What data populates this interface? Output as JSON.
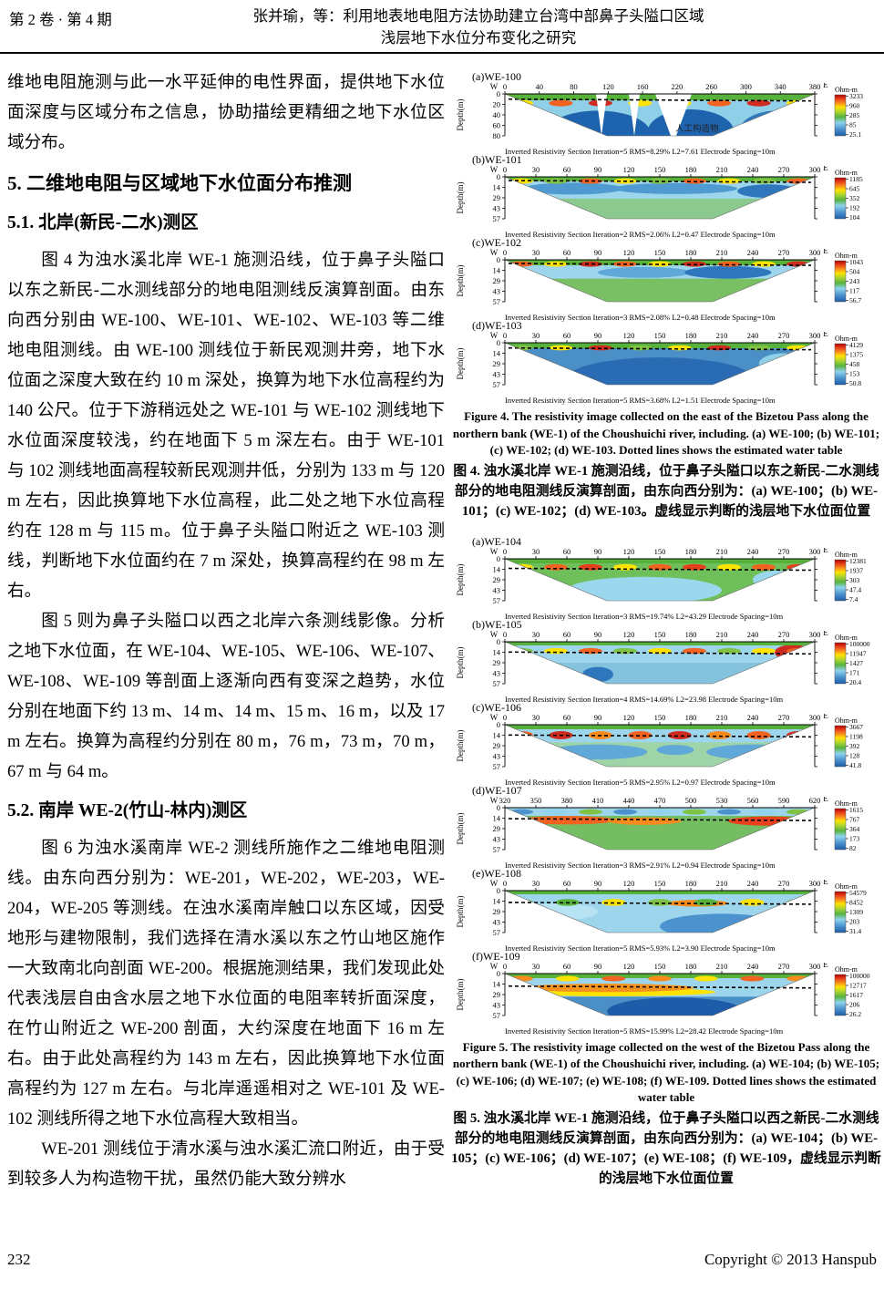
{
  "header": {
    "issue": "第 2 卷 · 第 4 期",
    "title_line1": "张并瑜，等：利用地表地电阻方法协助建立台湾中部鼻子头隘口区域",
    "title_line2": "浅层地下水位分布变化之研究"
  },
  "left_column": {
    "intro_paragraph": "维地电阻施测与此一水平延伸的电性界面，提供地下水位面深度与区域分布之信息，协助描绘更精细之地下水位区域分布。",
    "section5_heading": "5. 二维地电阻与区域地下水位面分布推测",
    "section51_heading": "5.1. 北岸(新民‐二水)测区",
    "para1": "图 4 为浊水溪北岸 WE-1 施测沿线，位于鼻子头隘口以东之新民‐二水测线部分的地电阻测线反演算剖面。由东向西分别由 WE-100、WE-101、WE-102、WE-103 等二维地电阻测线。由 WE-100 测线位于新民观测井旁，地下水位面之深度大致在约 10 m 深处，换算为地下水位高程约为 140 公尺。位于下游稍远处之 WE-101 与 WE-102 测线地下水位面深度较浅，约在地面下 5 m 深左右。由于 WE-101 与 102 测线地面高程较新民观测井低，分别为 133 m 与 120 m 左右，因此换算地下水位高程，此二处之地下水位高程约在 128 m 与 115 m。位于鼻子头隘口附近之 WE-103 测线，判断地下水位面约在 7 m 深处，换算高程约在 98 m 左右。",
    "para2": "图 5 则为鼻子头隘口以西之北岸六条测线影像。分析之地下水位面，在 WE-104、WE-105、WE-106、WE-107、WE-108、WE-109 等剖面上逐渐向西有变深之趋势，水位分别在地面下约 13 m、14 m、14 m、15 m、16 m，以及 17 m 左右。换算为高程约分别在 80 m，76 m，73 m，70 m，67 m 与 64 m。",
    "section52_heading": "5.2. 南岸 WE-2(竹山‐林内)测区",
    "para3": "图 6 为浊水溪南岸 WE-2 测线所施作之二维地电阻测线。由东向西分别为：WE-201，WE-202，WE-203，WE-204，WE-205 等测线。在浊水溪南岸触口以东区域，因受地形与建物限制，我们选择在清水溪以东之竹山地区施作一大致南北向剖面 WE-200。根据施测结果，我们发现此处代表浅层自由含水层之地下水位面的电阻率转折面深度，在竹山附近之 WE-200 剖面，大约深度在地面下 16 m 左右。由于此处高程约为 143 m 左右，因此换算地下水位面高程约为 127 m 左右。与北岸遥遥相对之 WE-101 及 WE-102 测线所得之地下水位高程大致相当。",
    "para4": "WE-201 测线位于清水溪与浊水溪汇流口附近，由于受到较多人为构造物干扰，虽然仍能大致分辨水"
  },
  "chart_data": [
    {
      "type": "heatmap",
      "title": "Figure 4",
      "caption_en": "Figure 4. The resistivity image collected on the east of the Bizetou Pass along the northern bank (WE-1) of the Choushuichi river, including. (a) WE-100; (b) WE-101; (c) WE-102; (d) WE-103. Dotted lines shows the estimated water table",
      "caption_zh": "图 4. 浊水溪北岸 WE-1 施测沿线，位于鼻子头隘口以东之新民-二水测线部分的地电阻测线反演算剖面，由东向西分别为：(a) WE-100；(b) WE-101；(c) WE-102；(d) WE-103。虚线显示判断的浅层地下水位面位置",
      "panels": [
        {
          "label": "(a)WE-100",
          "west": "W",
          "east": "E",
          "ylabel": "Depth(m)",
          "x_ticks": [
            "0",
            "40",
            "80",
            "120",
            "160",
            "220",
            "260",
            "300",
            "340",
            "380"
          ],
          "y_ticks": [
            "0",
            "20",
            "40",
            "60",
            "80"
          ],
          "y_max": 80,
          "water_table_depth_m": 10,
          "footer": "Inverted Resistivity Section  Iteration=5  RMS=8.29%  L2=7.61  Electrode Spacing=10m",
          "colorbar": {
            "title": "Ohm-m",
            "values": [
              "3233",
              "960",
              "285",
              "85",
              "25.1"
            ]
          },
          "annotation": "人工构造物",
          "pattern": "we100"
        },
        {
          "label": "(b)WE-101",
          "west": "W",
          "east": "E",
          "ylabel": "Depth(m)",
          "x_ticks": [
            "0",
            "30",
            "60",
            "90",
            "120",
            "150",
            "180",
            "210",
            "240",
            "270",
            "300"
          ],
          "y_ticks": [
            "0",
            "14",
            "29",
            "43",
            "57"
          ],
          "y_max": 57,
          "water_table_depth_m": 5,
          "footer": "Inverted Resistivity Section  Iteration=2  RMS=2.06%  L2=0.47  Electrode Spacing=10m",
          "colorbar": {
            "title": "Ohm-m",
            "values": [
              "1185",
              "645",
              "352",
              "192",
              "104"
            ]
          },
          "pattern": "bluegreen"
        },
        {
          "label": "(c)WE-102",
          "west": "W",
          "east": "E",
          "ylabel": "Depth(m)",
          "x_ticks": [
            "0",
            "30",
            "60",
            "90",
            "120",
            "150",
            "180",
            "210",
            "240",
            "270",
            "300"
          ],
          "y_ticks": [
            "0",
            "14",
            "29",
            "43",
            "57"
          ],
          "y_max": 57,
          "water_table_depth_m": 5,
          "footer": "Inverted Resistivity Section  Iteration=3  RMS=2.08%  L2=0.48  Electrode Spacing=10m",
          "colorbar": {
            "title": "Ohm-m",
            "values": [
              "1043",
              "504",
              "243",
              "117",
              "56.7"
            ]
          },
          "pattern": "green102"
        },
        {
          "label": "(d)WE-103",
          "west": "W",
          "east": "E",
          "ylabel": "Depth(m)",
          "x_ticks": [
            "0",
            "30",
            "60",
            "90",
            "120",
            "150",
            "180",
            "210",
            "240",
            "270",
            "300"
          ],
          "y_ticks": [
            "0",
            "14",
            "29",
            "43",
            "57"
          ],
          "y_max": 57,
          "water_table_depth_m": 7,
          "footer": "Inverted Resistivity Section  Iteration=5  RMS=3.68%  L2=1.51  Electrode Spacing=10m",
          "colorbar": {
            "title": "Ohm-m",
            "values": [
              "4129",
              "1375",
              "458",
              "153",
              "50.8"
            ]
          },
          "pattern": "deepblue"
        }
      ]
    },
    {
      "type": "heatmap",
      "title": "Figure 5",
      "caption_en": "Figure 5. The resistivity image collected on the west of the Bizetou Pass along the northern bank (WE-1) of the Choushuichi river, including. (a) WE-104; (b) WE-105; (c) WE-106; (d) WE-107; (e) WE-108; (f) WE-109. Dotted lines shows the estimated water table",
      "caption_zh": "图 5. 浊水溪北岸 WE-1 施测沿线，位于鼻子头隘口以西之新民-二水测线部分的地电阻测线反演算剖面，由东向西分别为：(a) WE-104；(b) WE-105；(c) WE-106；(d) WE-107；(e) WE-108；(f) WE-109，虚线显示判断的浅层地下水位面位置",
      "panels": [
        {
          "label": "(a)WE-104",
          "west": "W",
          "east": "E",
          "ylabel": "Depth(m)",
          "x_ticks": [
            "0",
            "30",
            "60",
            "90",
            "120",
            "150",
            "180",
            "210",
            "240",
            "270",
            "300"
          ],
          "y_ticks": [
            "0",
            "14",
            "29",
            "43",
            "57"
          ],
          "y_max": 57,
          "water_table_depth_m": 13,
          "footer": "Inverted Resistivity Section  Iteration=3  RMS=19.74%  L2=43.29  Electrode Spacing=10m",
          "colorbar": {
            "title": "Ohm-m",
            "values": [
              "12381",
              "1937",
              "303",
              "47.4",
              "7.4"
            ]
          },
          "pattern": "green104"
        },
        {
          "label": "(b)WE-105",
          "west": "W",
          "east": "E",
          "ylabel": "Depth(m)",
          "x_ticks": [
            "0",
            "30",
            "60",
            "90",
            "120",
            "150",
            "180",
            "210",
            "240",
            "270",
            "300"
          ],
          "y_ticks": [
            "0",
            "14",
            "29",
            "43",
            "57"
          ],
          "y_max": 57,
          "water_table_depth_m": 14,
          "footer": "Inverted Resistivity Section  Iteration=4  RMS=14.69%  L2=23.98  Electrode Spacing=10m",
          "colorbar": {
            "title": "Ohm-m",
            "values": [
              "100000",
              "11947",
              "1427",
              "171",
              "20.4"
            ]
          },
          "pattern": "lightblue105"
        },
        {
          "label": "(c)WE-106",
          "west": "W",
          "east": "E",
          "ylabel": "Depth(m)",
          "x_ticks": [
            "0",
            "30",
            "60",
            "90",
            "120",
            "150",
            "180",
            "210",
            "240",
            "270",
            "300"
          ],
          "y_ticks": [
            "0",
            "14",
            "29",
            "43",
            "57"
          ],
          "y_max": 57,
          "water_table_depth_m": 14,
          "footer": "Inverted Resistivity Section  Iteration=5  RMS=2.95%  L2=0.97  Electrode Spacing=10m",
          "colorbar": {
            "title": "Ohm-m",
            "values": [
              "3667",
              "1198",
              "392",
              "128",
              "41.8"
            ]
          },
          "pattern": "orange106"
        },
        {
          "label": "(d)WE-107",
          "west": "W",
          "east": "E",
          "ylabel": "Depth(m)",
          "x_ticks": [
            "320",
            "350",
            "380",
            "410",
            "440",
            "470",
            "500",
            "530",
            "560",
            "590",
            "620"
          ],
          "y_ticks": [
            "0",
            "14",
            "29",
            "43",
            "57"
          ],
          "y_max": 57,
          "water_table_depth_m": 15,
          "footer": "Inverted Resistivity Section  Iteration=3  RMS=2.91%  L2=0.94  Electrode Spacing=10m",
          "colorbar": {
            "title": "Ohm-m",
            "values": [
              "1615",
              "767",
              "364",
              "173",
              "82"
            ]
          },
          "pattern": "orangegreen107"
        },
        {
          "label": "(e)WE-108",
          "west": "W",
          "east": "E",
          "ylabel": "Depth(m)",
          "x_ticks": [
            "0",
            "30",
            "60",
            "90",
            "120",
            "150",
            "180",
            "210",
            "240",
            "270",
            "300"
          ],
          "y_ticks": [
            "0",
            "14",
            "29",
            "43",
            "57"
          ],
          "y_max": 57,
          "water_table_depth_m": 16,
          "footer": "Inverted Resistivity Section  Iteration=5  RMS=5.93%  L2=3.90  Electrode Spacing=10m",
          "colorbar": {
            "title": "Ohm-m",
            "values": [
              "54579",
              "8452",
              "1309",
              "203",
              "31.4"
            ]
          },
          "pattern": "lightblue108"
        },
        {
          "label": "(f)WE-109",
          "west": "W",
          "east": "E",
          "ylabel": "Depth(m)",
          "x_ticks": [
            "0",
            "30",
            "60",
            "90",
            "120",
            "150",
            "180",
            "210",
            "240",
            "270",
            "300"
          ],
          "y_ticks": [
            "0",
            "14",
            "29",
            "43",
            "57"
          ],
          "y_max": 57,
          "water_table_depth_m": 17,
          "footer": "Inverted Resistivity Section  Iteration=5  RMS=15.99%  L2=28.42  Electrode Spacing=10m",
          "colorbar": {
            "title": "Ohm-m",
            "values": [
              "100000",
              "12717",
              "1617",
              "206",
              "26.2"
            ]
          },
          "pattern": "orangeblue109"
        }
      ]
    }
  ],
  "footer": {
    "page_number": "232",
    "copyright": "Copyright © 2013 Hanspub"
  }
}
